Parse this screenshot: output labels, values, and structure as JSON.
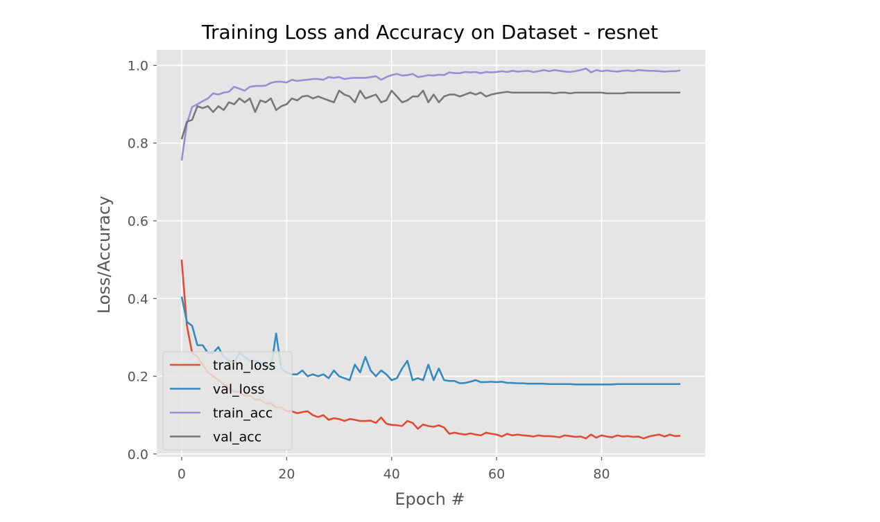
{
  "chart_data": {
    "type": "line",
    "title": "Training Loss and Accuracy on Dataset - resnet",
    "xlabel": "Epoch #",
    "ylabel": "Loss/Accuracy",
    "xlim": [
      -4.75,
      99.75
    ],
    "ylim": [
      -0.0075,
      1.04
    ],
    "xticks": [
      0,
      20,
      40,
      60,
      80
    ],
    "yticks": [
      0.0,
      0.2,
      0.4,
      0.6,
      0.8,
      1.0
    ],
    "xtick_labels": [
      "0",
      "20",
      "40",
      "60",
      "80"
    ],
    "ytick_labels": [
      "0.0",
      "0.2",
      "0.4",
      "0.6",
      "0.8",
      "1.0"
    ],
    "grid": true,
    "legend_position": "lower-left",
    "series": [
      {
        "name": "train_loss",
        "color": "#E24A33",
        "values": [
          0.5,
          0.33,
          0.26,
          0.25,
          0.23,
          0.21,
          0.2,
          0.19,
          0.18,
          0.17,
          0.16,
          0.16,
          0.15,
          0.15,
          0.14,
          0.14,
          0.13,
          0.13,
          0.12,
          0.12,
          0.11,
          0.11,
          0.105,
          0.108,
          0.11,
          0.1,
          0.095,
          0.1,
          0.088,
          0.092,
          0.09,
          0.085,
          0.09,
          0.088,
          0.085,
          0.085,
          0.086,
          0.08,
          0.094,
          0.078,
          0.075,
          0.074,
          0.072,
          0.085,
          0.08,
          0.065,
          0.076,
          0.072,
          0.07,
          0.074,
          0.068,
          0.052,
          0.055,
          0.052,
          0.05,
          0.053,
          0.05,
          0.048,
          0.055,
          0.052,
          0.05,
          0.045,
          0.052,
          0.048,
          0.05,
          0.048,
          0.047,
          0.045,
          0.048,
          0.046,
          0.046,
          0.045,
          0.043,
          0.048,
          0.046,
          0.044,
          0.045,
          0.04,
          0.05,
          0.042,
          0.048,
          0.045,
          0.043,
          0.048,
          0.045,
          0.046,
          0.044,
          0.045,
          0.04,
          0.045,
          0.048,
          0.05,
          0.045,
          0.05,
          0.046,
          0.047
        ]
      },
      {
        "name": "val_loss",
        "color": "#348ABD",
        "values": [
          0.405,
          0.34,
          0.33,
          0.28,
          0.28,
          0.26,
          0.26,
          0.275,
          0.25,
          0.24,
          0.235,
          0.26,
          0.25,
          0.24,
          0.24,
          0.235,
          0.23,
          0.22,
          0.31,
          0.22,
          0.21,
          0.205,
          0.205,
          0.215,
          0.2,
          0.205,
          0.2,
          0.205,
          0.195,
          0.215,
          0.2,
          0.195,
          0.19,
          0.23,
          0.21,
          0.25,
          0.215,
          0.2,
          0.215,
          0.205,
          0.19,
          0.195,
          0.22,
          0.24,
          0.19,
          0.195,
          0.19,
          0.23,
          0.19,
          0.22,
          0.19,
          0.188,
          0.188,
          0.182,
          0.183,
          0.186,
          0.19,
          0.185,
          0.185,
          0.186,
          0.185,
          0.186,
          0.183,
          0.183,
          0.182,
          0.182,
          0.181,
          0.181,
          0.181,
          0.181,
          0.18,
          0.18,
          0.18,
          0.18,
          0.18,
          0.179,
          0.179,
          0.179,
          0.179,
          0.179,
          0.179,
          0.179,
          0.179,
          0.18,
          0.18,
          0.18,
          0.18,
          0.18,
          0.18,
          0.18,
          0.18,
          0.18,
          0.18,
          0.18,
          0.18,
          0.18
        ]
      },
      {
        "name": "train_acc",
        "color": "#988ED5",
        "values": [
          0.755,
          0.85,
          0.893,
          0.9,
          0.908,
          0.915,
          0.928,
          0.925,
          0.93,
          0.932,
          0.945,
          0.94,
          0.935,
          0.945,
          0.947,
          0.947,
          0.948,
          0.955,
          0.958,
          0.958,
          0.956,
          0.963,
          0.96,
          0.962,
          0.963,
          0.965,
          0.965,
          0.963,
          0.97,
          0.968,
          0.97,
          0.965,
          0.967,
          0.968,
          0.968,
          0.968,
          0.97,
          0.972,
          0.963,
          0.97,
          0.975,
          0.978,
          0.974,
          0.975,
          0.978,
          0.97,
          0.972,
          0.975,
          0.974,
          0.976,
          0.975,
          0.982,
          0.98,
          0.98,
          0.983,
          0.982,
          0.983,
          0.98,
          0.983,
          0.982,
          0.983,
          0.985,
          0.983,
          0.986,
          0.984,
          0.985,
          0.986,
          0.983,
          0.985,
          0.988,
          0.985,
          0.988,
          0.986,
          0.984,
          0.983,
          0.985,
          0.988,
          0.992,
          0.982,
          0.988,
          0.985,
          0.987,
          0.985,
          0.984,
          0.986,
          0.987,
          0.985,
          0.988,
          0.987,
          0.986,
          0.986,
          0.985,
          0.984,
          0.985,
          0.985,
          0.987
        ]
      },
      {
        "name": "val_acc",
        "color": "#777777",
        "values": [
          0.81,
          0.855,
          0.86,
          0.895,
          0.89,
          0.895,
          0.88,
          0.895,
          0.885,
          0.905,
          0.9,
          0.915,
          0.905,
          0.915,
          0.88,
          0.91,
          0.905,
          0.915,
          0.885,
          0.895,
          0.9,
          0.915,
          0.91,
          0.92,
          0.922,
          0.915,
          0.92,
          0.915,
          0.91,
          0.905,
          0.935,
          0.925,
          0.92,
          0.905,
          0.935,
          0.915,
          0.92,
          0.925,
          0.905,
          0.91,
          0.935,
          0.92,
          0.905,
          0.91,
          0.92,
          0.92,
          0.935,
          0.905,
          0.925,
          0.905,
          0.92,
          0.925,
          0.925,
          0.92,
          0.925,
          0.93,
          0.925,
          0.93,
          0.92,
          0.925,
          0.928,
          0.93,
          0.932,
          0.93,
          0.93,
          0.93,
          0.93,
          0.93,
          0.93,
          0.93,
          0.93,
          0.928,
          0.93,
          0.93,
          0.928,
          0.93,
          0.93,
          0.93,
          0.93,
          0.93,
          0.93,
          0.928,
          0.928,
          0.928,
          0.928,
          0.93,
          0.93,
          0.93,
          0.93,
          0.93,
          0.93,
          0.93,
          0.93,
          0.93,
          0.93,
          0.93
        ]
      }
    ]
  }
}
